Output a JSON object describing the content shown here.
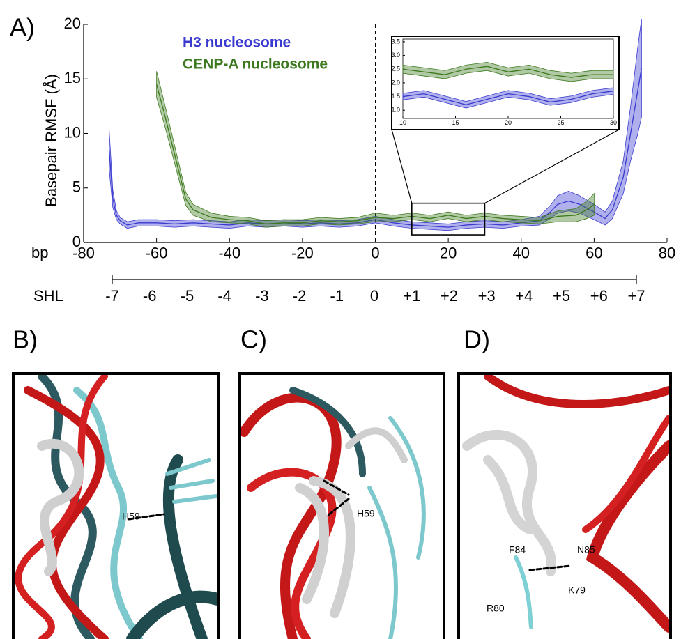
{
  "panel_labels": [
    "A)",
    "B)",
    "C)",
    "D)"
  ],
  "annotations": [
    [
      "H59"
    ],
    [
      "H59"
    ],
    [
      "F84",
      "N85",
      "K79",
      "R80"
    ]
  ],
  "chart_data": [
    {
      "type": "line",
      "xlabel": "bp",
      "ylabel": "Basepair RMSF (Å)",
      "xlim": [
        -80,
        80
      ],
      "xticks": [
        -80,
        -60,
        -40,
        -20,
        0,
        20,
        40,
        60,
        80
      ],
      "ylim": [
        0,
        20
      ],
      "yticks": [
        0,
        5,
        10,
        15,
        20
      ],
      "vline": 0,
      "legend": "upper left",
      "series": [
        {
          "name": "H3 nucleosome",
          "color": "#3a3ad0",
          "x": [
            -73,
            -72,
            -71,
            -70,
            -68,
            -65,
            -60,
            -55,
            -50,
            -45,
            -40,
            -35,
            -30,
            -25,
            -20,
            -15,
            -10,
            -5,
            0,
            5,
            10,
            15,
            20,
            25,
            30,
            35,
            40,
            45,
            48,
            50,
            53,
            56,
            60,
            63,
            65,
            68,
            70,
            72,
            73
          ],
          "values": [
            8.5,
            4,
            2.5,
            2,
            1.6,
            1.8,
            1.8,
            1.7,
            1.8,
            1.7,
            1.6,
            1.8,
            1.7,
            1.8,
            1.7,
            1.8,
            1.7,
            1.8,
            2.1,
            1.8,
            1.6,
            1.5,
            1.4,
            1.6,
            1.7,
            1.6,
            1.8,
            2.0,
            2.8,
            3.5,
            3.8,
            3.5,
            2.8,
            2.2,
            3,
            6,
            10,
            14,
            16
          ],
          "errors": [
            1.8,
            0.8,
            0.4,
            0.3,
            0.3,
            0.3,
            0.3,
            0.3,
            0.3,
            0.3,
            0.3,
            0.3,
            0.3,
            0.3,
            0.3,
            0.3,
            0.3,
            0.3,
            0.3,
            0.3,
            0.3,
            0.3,
            0.3,
            0.3,
            0.3,
            0.3,
            0.3,
            0.4,
            0.6,
            0.8,
            0.9,
            0.8,
            0.7,
            0.6,
            0.8,
            1.5,
            2.5,
            4,
            4.5
          ]
        },
        {
          "name": "CENP-A nucleosome",
          "color": "#3d7a1f",
          "x": [
            -60,
            -58,
            -55,
            -52,
            -50,
            -45,
            -40,
            -35,
            -30,
            -25,
            -20,
            -15,
            -10,
            -5,
            0,
            5,
            10,
            15,
            20,
            25,
            30,
            35,
            40,
            45,
            50,
            55,
            58,
            60
          ],
          "values": [
            14.5,
            12,
            8,
            4,
            3,
            2.3,
            2.1,
            2.0,
            1.7,
            1.8,
            1.8,
            2.0,
            1.9,
            2.0,
            2.3,
            2.2,
            2.4,
            2.2,
            2.5,
            2.2,
            2.4,
            2.2,
            2.1,
            2.0,
            2.4,
            2.5,
            3,
            3.5
          ],
          "errors": [
            1.2,
            1.0,
            0.8,
            0.6,
            0.5,
            0.4,
            0.3,
            0.3,
            0.3,
            0.3,
            0.3,
            0.3,
            0.3,
            0.3,
            0.4,
            0.3,
            0.3,
            0.3,
            0.3,
            0.3,
            0.3,
            0.3,
            0.3,
            0.3,
            0.5,
            0.6,
            0.8,
            1.0
          ]
        }
      ]
    },
    {
      "type": "line",
      "xlim": [
        10,
        30
      ],
      "xticks": [
        10,
        15,
        20,
        25,
        30
      ],
      "ylim": [
        0.7,
        3.6
      ],
      "yticks": [
        {
          "value": 1.0,
          "label": "1.0"
        },
        1.5,
        {
          "value": 2,
          "label": "2.0"
        },
        2.5,
        {
          "value": 3,
          "label": "3.0"
        },
        3.5
      ],
      "series": [
        {
          "color": "#3a3ad0",
          "x": [
            10,
            12,
            14,
            16,
            18,
            20,
            22,
            24,
            26,
            28,
            30
          ],
          "values": [
            1.5,
            1.6,
            1.4,
            1.2,
            1.4,
            1.6,
            1.5,
            1.3,
            1.4,
            1.6,
            1.7
          ],
          "errors": [
            0.12,
            0.12,
            0.12,
            0.12,
            0.12,
            0.12,
            0.12,
            0.12,
            0.12,
            0.12,
            0.12
          ]
        },
        {
          "color": "#3d7a1f",
          "x": [
            10,
            12,
            14,
            16,
            18,
            20,
            22,
            24,
            26,
            28,
            30
          ],
          "values": [
            2.5,
            2.4,
            2.3,
            2.5,
            2.6,
            2.4,
            2.5,
            2.3,
            2.2,
            2.3,
            2.3
          ],
          "errors": [
            0.15,
            0.15,
            0.15,
            0.15,
            0.15,
            0.15,
            0.15,
            0.15,
            0.15,
            0.15,
            0.15
          ]
        }
      ]
    },
    {
      "type": "category-axis",
      "label": "SHL",
      "categories": [
        "-7",
        "-6",
        "-5",
        "-4",
        "-3",
        "-2",
        "-1",
        "0",
        "+1",
        "+2",
        "+3",
        "+4",
        "+5",
        "+6",
        "+7"
      ]
    }
  ]
}
